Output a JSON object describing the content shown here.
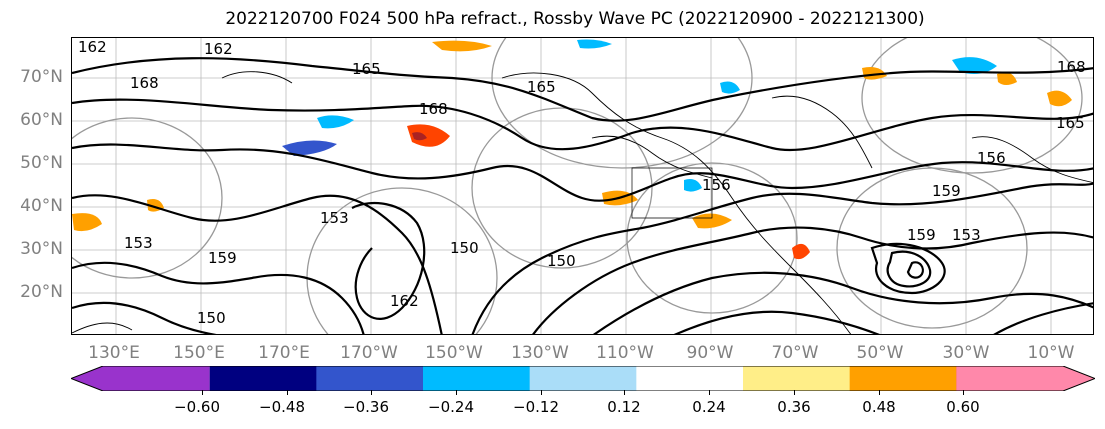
{
  "title": "2022120700 F024 500 hPa refract., Rossby Wave PC (2022120900 - 2022121300)",
  "lat_labels": [
    "70°N",
    "60°N",
    "50°N",
    "40°N",
    "30°N",
    "20°N"
  ],
  "lon_labels": [
    "130°E",
    "150°E",
    "170°E",
    "170°W",
    "150°W",
    "130°W",
    "110°W",
    "90°W",
    "70°W",
    "50°W",
    "30°W",
    "10°W"
  ],
  "contour_labels": [
    "162",
    "162",
    "165",
    "168",
    "168",
    "165",
    "168",
    "159",
    "153",
    "153",
    "150",
    "150",
    "150",
    "156",
    "156",
    "159",
    "153",
    "159",
    "162",
    "165"
  ],
  "colorbar": {
    "colors": [
      "#9933cc",
      "#000080",
      "#3355cc",
      "#00bbff",
      "#aaddf8",
      "#ffffff",
      "#ffee88",
      "#ffa000",
      "#ff4400",
      "#aa2222",
      "#ff88aa"
    ],
    "tick_labels": [
      "−0.60",
      "−0.48",
      "−0.36",
      "−0.24",
      "−0.12",
      "0.12",
      "0.24",
      "0.36",
      "0.48",
      "0.60"
    ]
  },
  "colors": {
    "contour": "#000000",
    "grid": "#aaaaaa",
    "axis_label": "#808080"
  }
}
